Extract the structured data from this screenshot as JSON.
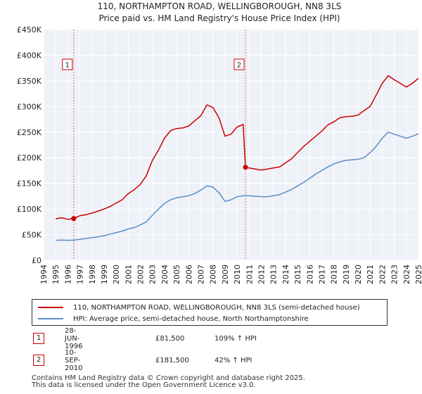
{
  "chart_data": {
    "type": "line",
    "title": "110, NORTHAMPTON ROAD, WELLINGBOROUGH, NN8 3LS",
    "subtitle": "Price paid vs. HM Land Registry's House Price Index (HPI)",
    "xlabel": "",
    "ylabel": "",
    "xlim": [
      1994,
      2025
    ],
    "ylim": [
      0,
      450000
    ],
    "y_ticks": [
      0,
      50000,
      100000,
      150000,
      200000,
      250000,
      300000,
      350000,
      400000,
      450000
    ],
    "y_tick_labels": [
      "£0",
      "£50K",
      "£100K",
      "£150K",
      "£200K",
      "£250K",
      "£300K",
      "£350K",
      "£400K",
      "£450K"
    ],
    "x_ticks": [
      1994,
      1995,
      1996,
      1997,
      1998,
      1999,
      2000,
      2001,
      2002,
      2003,
      2004,
      2005,
      2006,
      2007,
      2008,
      2009,
      2010,
      2011,
      2012,
      2013,
      2014,
      2015,
      2016,
      2017,
      2018,
      2019,
      2020,
      2021,
      2022,
      2023,
      2024,
      2025
    ],
    "grid": true,
    "series": [
      {
        "name": "110, NORTHAMPTON ROAD, WELLINGBOROUGH, NN8 3LS (semi-detached house)",
        "color": "#cc0000",
        "x": [
          1995.0,
          1995.5,
          1996.0,
          1996.49,
          1997.0,
          1997.5,
          1998.0,
          1998.5,
          1999.0,
          1999.5,
          2000.0,
          2000.5,
          2001.0,
          2001.5,
          2002.0,
          2002.5,
          2003.0,
          2003.5,
          2004.0,
          2004.5,
          2005.0,
          2005.5,
          2006.0,
          2006.5,
          2007.0,
          2007.5,
          2008.0,
          2008.5,
          2009.0,
          2009.5,
          2010.0,
          2010.5,
          2010.69,
          2011.0,
          2011.5,
          2012.0,
          2012.5,
          2013.0,
          2013.5,
          2014.0,
          2014.5,
          2015.0,
          2015.5,
          2016.0,
          2016.5,
          2017.0,
          2017.5,
          2018.0,
          2018.5,
          2019.0,
          2019.5,
          2020.0,
          2020.5,
          2021.0,
          2021.5,
          2022.0,
          2022.5,
          2023.0,
          2023.5,
          2024.0,
          2024.5,
          2025.0
        ],
        "values": [
          81000,
          83000,
          80000,
          81500,
          87000,
          89000,
          92000,
          96000,
          100000,
          105000,
          112000,
          118000,
          130000,
          138000,
          148000,
          165000,
          195000,
          215000,
          238000,
          253000,
          257000,
          258000,
          262000,
          272000,
          282000,
          303000,
          298000,
          278000,
          242000,
          246000,
          260000,
          265000,
          181500,
          180000,
          178000,
          176000,
          178000,
          180000,
          182000,
          190000,
          198000,
          210000,
          222000,
          232000,
          242000,
          252000,
          264000,
          270000,
          278000,
          280000,
          281000,
          283000,
          292000,
          300000,
          322000,
          345000,
          360000,
          352000,
          345000,
          338000,
          345000,
          355000
        ]
      },
      {
        "name": "HPI: Average price, semi-detached house, North Northamptonshire",
        "color": "#5b8ec8",
        "x": [
          1995.0,
          1995.5,
          1996.0,
          1996.49,
          1997.0,
          1997.5,
          1998.0,
          1998.5,
          1999.0,
          1999.5,
          2000.0,
          2000.5,
          2001.0,
          2001.5,
          2002.0,
          2002.5,
          2003.0,
          2003.5,
          2004.0,
          2004.5,
          2005.0,
          2005.5,
          2006.0,
          2006.5,
          2007.0,
          2007.5,
          2008.0,
          2008.5,
          2009.0,
          2009.5,
          2010.0,
          2010.5,
          2011.0,
          2011.5,
          2012.0,
          2012.5,
          2013.0,
          2013.5,
          2014.0,
          2014.5,
          2015.0,
          2015.5,
          2016.0,
          2016.5,
          2017.0,
          2017.5,
          2018.0,
          2018.5,
          2019.0,
          2019.5,
          2020.0,
          2020.5,
          2021.0,
          2021.5,
          2022.0,
          2022.5,
          2023.0,
          2023.5,
          2024.0,
          2024.5,
          2025.0
        ],
        "values": [
          39000,
          39500,
          39000,
          39500,
          41000,
          42500,
          44000,
          46000,
          48000,
          51000,
          54000,
          57000,
          61000,
          64000,
          69000,
          75000,
          88000,
          100000,
          111000,
          118000,
          122000,
          124000,
          126000,
          130000,
          137000,
          145000,
          143000,
          132000,
          115000,
          118000,
          124000,
          126000,
          126000,
          125000,
          124000,
          124000,
          126000,
          128000,
          133000,
          138000,
          145000,
          152000,
          160000,
          168000,
          175000,
          182000,
          188000,
          192000,
          195000,
          196000,
          197000,
          200000,
          210000,
          222000,
          238000,
          250000,
          246000,
          242000,
          238000,
          242000,
          247000
        ]
      }
    ],
    "transactions": [
      {
        "id": "1",
        "x": 1996.49,
        "value": 81500
      },
      {
        "id": "2",
        "x": 2010.69,
        "value": 181500
      }
    ]
  },
  "legend": {
    "property": "110, NORTHAMPTON ROAD, WELLINGBOROUGH, NN8 3LS (semi-detached house)",
    "hpi": "HPI: Average price, semi-detached house, North Northamptonshire"
  },
  "table": [
    {
      "num": "1",
      "date": "28-JUN-1996",
      "price": "£81,500",
      "hpi": "109% ↑ HPI"
    },
    {
      "num": "2",
      "date": "10-SEP-2010",
      "price": "£181,500",
      "hpi": "42% ↑ HPI"
    }
  ],
  "footer": {
    "line1": "Contains HM Land Registry data © Crown copyright and database right 2025.",
    "line2": "This data is licensed under the Open Government Licence v3.0."
  },
  "colors": {
    "property": "#cc0000",
    "hpi": "#5b8ec8",
    "plot_bg": "#eef1f7",
    "grid": "#ffffff"
  }
}
